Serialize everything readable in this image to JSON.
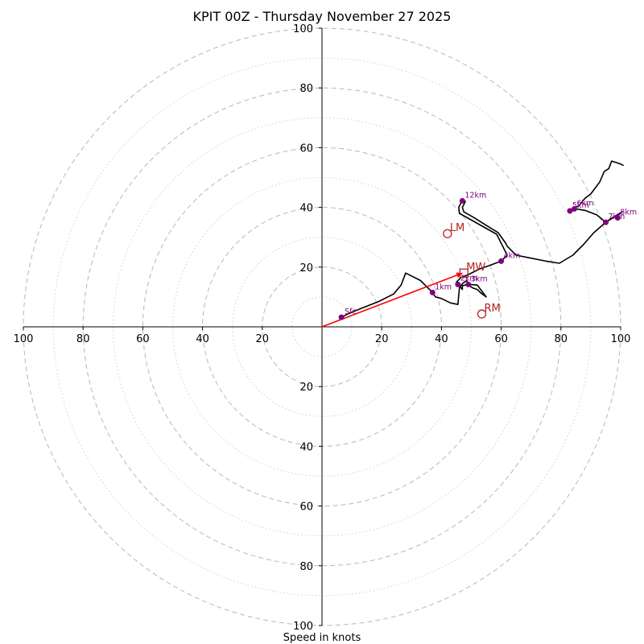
{
  "chart_data": {
    "type": "hodograph",
    "title": "KPIT 00Z - Thursday November 27 2025",
    "xlabel": "Speed in knots",
    "units": "knots",
    "range": [
      -100,
      100
    ],
    "major_rings": [
      20,
      40,
      60,
      80,
      100
    ],
    "minor_rings": [
      10,
      30,
      50,
      70,
      90
    ],
    "x_tick_labels": [
      "100",
      "80",
      "60",
      "40",
      "20",
      "20",
      "40",
      "60",
      "80",
      "100"
    ],
    "x_tick_values": [
      -100,
      -80,
      -60,
      -40,
      -20,
      20,
      40,
      60,
      80,
      100
    ],
    "y_tick_labels": [
      "100",
      "80",
      "60",
      "40",
      "20",
      "20",
      "40",
      "60",
      "80",
      "100"
    ],
    "y_tick_values": [
      100,
      80,
      60,
      40,
      20,
      -20,
      -40,
      -60,
      -80,
      -100
    ],
    "trace": [
      [
        6.5,
        3.2
      ],
      [
        9,
        4.5
      ],
      [
        14,
        6.5
      ],
      [
        19,
        8.5
      ],
      [
        24,
        11
      ],
      [
        26.5,
        14
      ],
      [
        28,
        18
      ],
      [
        33,
        15.5
      ],
      [
        37,
        11.5
      ],
      [
        38,
        10
      ],
      [
        40,
        9.5
      ],
      [
        43,
        8
      ],
      [
        45.5,
        7.5
      ],
      [
        46,
        13
      ],
      [
        47,
        14.5
      ],
      [
        48.5,
        15.5
      ],
      [
        49,
        14
      ],
      [
        50.5,
        13
      ],
      [
        52,
        12.5
      ],
      [
        53,
        11.5
      ],
      [
        55,
        10
      ],
      [
        52,
        14
      ],
      [
        49,
        14.2
      ],
      [
        47,
        13.8
      ],
      [
        47,
        12.5
      ],
      [
        45,
        15
      ],
      [
        46.5,
        16.5
      ],
      [
        49,
        17.5
      ],
      [
        51,
        18.5
      ],
      [
        53,
        19.5
      ],
      [
        56,
        20.5
      ],
      [
        60,
        22
      ],
      [
        62,
        24
      ],
      [
        60,
        28
      ],
      [
        58.5,
        31
      ],
      [
        46,
        38
      ],
      [
        45.8,
        40
      ],
      [
        47,
        42.5
      ],
      [
        48,
        42
      ],
      [
        47,
        40
      ],
      [
        47.5,
        38.5
      ],
      [
        51,
        36.5
      ],
      [
        55,
        34
      ],
      [
        59,
        31.5
      ],
      [
        61.5,
        28
      ],
      [
        62,
        27
      ],
      [
        65,
        24
      ],
      [
        70,
        23
      ],
      [
        75,
        22
      ],
      [
        79.5,
        21.3
      ],
      [
        84,
        24
      ],
      [
        87.5,
        27.5
      ],
      [
        91,
        31.5
      ],
      [
        95,
        35
      ],
      [
        99,
        37.5
      ],
      [
        100.5,
        38.5
      ],
      [
        98,
        37
      ],
      [
        95,
        35
      ],
      [
        92,
        37.5
      ],
      [
        88,
        39
      ],
      [
        85,
        39.5
      ],
      [
        83,
        38.8
      ],
      [
        82.5,
        38.7
      ],
      [
        86,
        40.5
      ],
      [
        88,
        43
      ],
      [
        90,
        44.5
      ],
      [
        93,
        48.5
      ],
      [
        94.5,
        52
      ],
      [
        96,
        53
      ],
      [
        97,
        55.5
      ],
      [
        98.5,
        55
      ],
      [
        100,
        54.5
      ],
      [
        101,
        54
      ]
    ],
    "height_markers": [
      {
        "label": "Sfc",
        "u": 6.5,
        "v": 3.2,
        "dx": 4,
        "dy": -4
      },
      {
        "label": "1km",
        "u": 37,
        "v": 11.5,
        "dx": 3,
        "dy": -4
      },
      {
        "label": "2km",
        "u": 45.5,
        "v": 14.2,
        "dx": 3,
        "dy": -5
      },
      {
        "label": "3km",
        "u": 49,
        "v": 14.2,
        "dx": 3,
        "dy": -4
      },
      {
        "label": "4km",
        "u": 60,
        "v": 22,
        "dx": 3,
        "dy": -4
      },
      {
        "label": "5km",
        "u": 83,
        "v": 38.8,
        "dx": 3,
        "dy": -4
      },
      {
        "label": "6km",
        "u": 84.5,
        "v": 39.5,
        "dx": 3,
        "dy": -4
      },
      {
        "label": "7km",
        "u": 95,
        "v": 35,
        "dx": 3,
        "dy": -4
      },
      {
        "label": "8km",
        "u": 99,
        "v": 36.5,
        "dx": 3,
        "dy": -4
      },
      {
        "label": "12km",
        "u": 47,
        "v": 42.2,
        "dx": 3,
        "dy": -4
      }
    ],
    "storm_motions": [
      {
        "label": "LM",
        "u": 42,
        "v": 31.2,
        "marker": "circle"
      },
      {
        "label": "MW",
        "u": 47.5,
        "v": 18,
        "marker": "square"
      },
      {
        "label": "RM",
        "u": 53.5,
        "v": 4.3,
        "marker": "circle"
      }
    ],
    "shear_vector": {
      "from": [
        0,
        0
      ],
      "to": [
        47,
        18
      ]
    },
    "colors": {
      "trace": "#000000",
      "height_marker": "#800080",
      "height_label": "#800080",
      "storm_motion": "#b22222",
      "shear_vector": "#ff0000",
      "grid": "#b8b8b8",
      "axes": "#000000"
    }
  }
}
